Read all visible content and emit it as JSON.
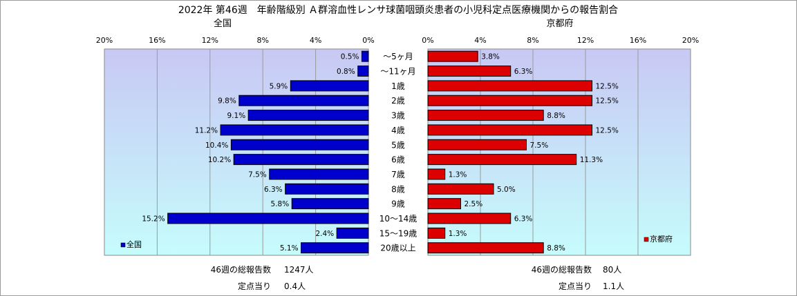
{
  "chart_title": "2022年 第46週　年齢階級別 Ａ群溶血性レンサ球菌咽頭炎患者の小児科定点医療機関からの報告割合",
  "chart_data": [
    {
      "type": "bar",
      "orientation": "horizontal",
      "direction": "right-to-left",
      "title": "全国",
      "categories": [
        "～5ヶ月",
        "～11ヶ月",
        "1歳",
        "2歳",
        "3歳",
        "4歳",
        "5歳",
        "6歳",
        "7歳",
        "8歳",
        "9歳",
        "10～14歳",
        "15～19歳",
        "20歳以上"
      ],
      "series": [
        {
          "name": "全国",
          "color": "#0000cc",
          "values": [
            0.5,
            0.8,
            5.9,
            9.8,
            9.1,
            11.2,
            10.4,
            10.2,
            7.5,
            6.3,
            5.8,
            15.2,
            2.4,
            5.1
          ]
        }
      ],
      "data_labels": [
        "0.5%",
        "0.8%",
        "5.9%",
        "9.8%",
        "9.1%",
        "11.2%",
        "10.4%",
        "10.2%",
        "7.5%",
        "6.3%",
        "5.8%",
        "15.2%",
        "2.4%",
        "5.1%"
      ],
      "xlim": [
        0,
        20
      ],
      "ticks": [
        "0%",
        "4%",
        "8%",
        "12%",
        "16%",
        "20%"
      ],
      "grid": true,
      "legend": "bottom-left",
      "footer": {
        "total_label": "46週の総報告数",
        "total_value": "1247人",
        "per_label": "定点当り",
        "per_value": "0.4人"
      }
    },
    {
      "type": "bar",
      "orientation": "horizontal",
      "direction": "left-to-right",
      "title": "京都府",
      "categories": [
        "～5ヶ月",
        "～11ヶ月",
        "1歳",
        "2歳",
        "3歳",
        "4歳",
        "5歳",
        "6歳",
        "7歳",
        "8歳",
        "9歳",
        "10～14歳",
        "15～19歳",
        "20歳以上"
      ],
      "series": [
        {
          "name": "京都府",
          "color": "#dd0000",
          "values": [
            3.8,
            6.3,
            12.5,
            12.5,
            8.8,
            12.5,
            7.5,
            11.3,
            1.3,
            5.0,
            2.5,
            6.3,
            1.3,
            8.8
          ]
        }
      ],
      "data_labels": [
        "3.8%",
        "6.3%",
        "12.5%",
        "12.5%",
        "8.8%",
        "12.5%",
        "7.5%",
        "11.3%",
        "1.3%",
        "5.0%",
        "2.5%",
        "6.3%",
        "1.3%",
        "8.8%"
      ],
      "xlim": [
        0,
        20
      ],
      "ticks": [
        "0%",
        "4%",
        "8%",
        "12%",
        "16%",
        "20%"
      ],
      "grid": true,
      "legend": "bottom-right",
      "footer": {
        "total_label": "46週の総報告数",
        "total_value": "80人",
        "per_label": "定点当り",
        "per_value": "1.1人"
      }
    }
  ],
  "colors": {
    "plot_top": "#c8c8f4",
    "plot_bottom": "#c6fcfc",
    "grid": "#9a9a9a"
  }
}
